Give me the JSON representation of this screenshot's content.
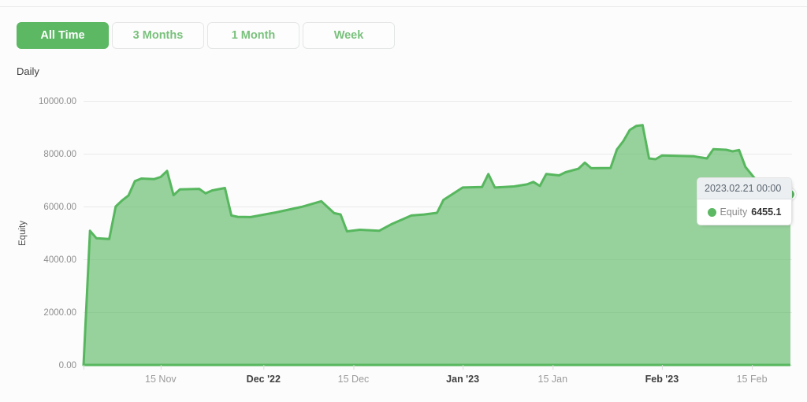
{
  "tabs": {
    "items": [
      {
        "label": "All Time",
        "active": true
      },
      {
        "label": "3 Months",
        "active": false
      },
      {
        "label": "1 Month",
        "active": false
      },
      {
        "label": "Week",
        "active": false
      }
    ]
  },
  "frequency_label": "Daily",
  "tooltip": {
    "title": "2023.02.21 00:00",
    "series": "Equity",
    "value": "6455.1"
  },
  "colors": {
    "accent_green": "#5cb863",
    "line": "#57b75e",
    "area_fill": "#5cb863",
    "area_fill_opacity": 0.63,
    "grid": "#eaeaea",
    "tick_label": "#9b9b9b",
    "tick_label_bold": "#3f3f3f",
    "y_label": "#8f8f8f",
    "axis_title": "#4d4d4d",
    "tab_inactive_text": "#79c17c",
    "tooltip_header_bg": "#eceff1"
  },
  "chart_data": {
    "type": "area",
    "title": "",
    "xlabel": "",
    "ylabel": "Equity",
    "ylim": [
      0,
      10000
    ],
    "yticks": [
      {
        "value": 0,
        "label": "0.00"
      },
      {
        "value": 2000,
        "label": "2000.00"
      },
      {
        "value": 4000,
        "label": "4000.00"
      },
      {
        "value": 6000,
        "label": "6000.00"
      },
      {
        "value": 8000,
        "label": "8000.00"
      },
      {
        "value": 10000,
        "label": "10000.00"
      }
    ],
    "xticks": [
      {
        "date": "2022-11-15",
        "label": "15 Nov",
        "bold": false
      },
      {
        "date": "2022-12-01",
        "label": "Dec '22",
        "bold": true
      },
      {
        "date": "2022-12-15",
        "label": "15 Dec",
        "bold": false
      },
      {
        "date": "2023-01-01",
        "label": "Jan '23",
        "bold": true
      },
      {
        "date": "2023-01-15",
        "label": "15 Jan",
        "bold": false
      },
      {
        "date": "2023-02-01",
        "label": "Feb '23",
        "bold": true
      },
      {
        "date": "2023-02-15",
        "label": "15 Feb",
        "bold": false
      }
    ],
    "x_range": [
      "2022-11-03",
      "2023-02-21"
    ],
    "grid": "horizontal-only",
    "legend_position": "none",
    "hover_point": {
      "date": "2023-02-21",
      "value": 6455.1
    },
    "series": [
      {
        "name": "Equity",
        "points": [
          [
            "2022-11-03",
            0
          ],
          [
            "2022-11-04",
            5080
          ],
          [
            "2022-11-05",
            4800
          ],
          [
            "2022-11-07",
            4770
          ],
          [
            "2022-11-08",
            6000
          ],
          [
            "2022-11-09",
            6230
          ],
          [
            "2022-11-10",
            6420
          ],
          [
            "2022-11-11",
            6960
          ],
          [
            "2022-11-12",
            7060
          ],
          [
            "2022-11-14",
            7040
          ],
          [
            "2022-11-15",
            7120
          ],
          [
            "2022-11-16",
            7350
          ],
          [
            "2022-11-17",
            6430
          ],
          [
            "2022-11-18",
            6650
          ],
          [
            "2022-11-21",
            6670
          ],
          [
            "2022-11-22",
            6500
          ],
          [
            "2022-11-23",
            6610
          ],
          [
            "2022-11-25",
            6700
          ],
          [
            "2022-11-26",
            5660
          ],
          [
            "2022-11-27",
            5610
          ],
          [
            "2022-11-29",
            5600
          ],
          [
            "2022-12-03",
            5780
          ],
          [
            "2022-12-07",
            5990
          ],
          [
            "2022-12-10",
            6200
          ],
          [
            "2022-12-12",
            5750
          ],
          [
            "2022-12-13",
            5700
          ],
          [
            "2022-12-14",
            5060
          ],
          [
            "2022-12-16",
            5120
          ],
          [
            "2022-12-19",
            5080
          ],
          [
            "2022-12-21",
            5340
          ],
          [
            "2022-12-24",
            5660
          ],
          [
            "2022-12-26",
            5700
          ],
          [
            "2022-12-28",
            5760
          ],
          [
            "2022-12-29",
            6250
          ],
          [
            "2023-01-01",
            6720
          ],
          [
            "2023-01-04",
            6740
          ],
          [
            "2023-01-05",
            7230
          ],
          [
            "2023-01-06",
            6720
          ],
          [
            "2023-01-09",
            6760
          ],
          [
            "2023-01-11",
            6840
          ],
          [
            "2023-01-12",
            6930
          ],
          [
            "2023-01-13",
            6780
          ],
          [
            "2023-01-14",
            7230
          ],
          [
            "2023-01-16",
            7180
          ],
          [
            "2023-01-17",
            7300
          ],
          [
            "2023-01-19",
            7430
          ],
          [
            "2023-01-20",
            7660
          ],
          [
            "2023-01-21",
            7450
          ],
          [
            "2023-01-24",
            7460
          ],
          [
            "2023-01-25",
            8160
          ],
          [
            "2023-01-26",
            8480
          ],
          [
            "2023-01-27",
            8900
          ],
          [
            "2023-01-28",
            9050
          ],
          [
            "2023-01-29",
            9080
          ],
          [
            "2023-01-30",
            7820
          ],
          [
            "2023-01-31",
            7790
          ],
          [
            "2023-02-01",
            7930
          ],
          [
            "2023-02-06",
            7900
          ],
          [
            "2023-02-08",
            7820
          ],
          [
            "2023-02-09",
            8170
          ],
          [
            "2023-02-11",
            8150
          ],
          [
            "2023-02-12",
            8090
          ],
          [
            "2023-02-13",
            8140
          ],
          [
            "2023-02-14",
            7500
          ],
          [
            "2023-02-16",
            6900
          ],
          [
            "2023-02-18",
            6600
          ],
          [
            "2023-02-21",
            6455.1
          ]
        ]
      }
    ]
  }
}
